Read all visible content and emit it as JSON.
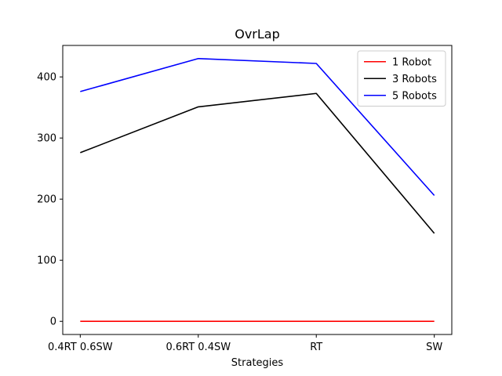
{
  "chart_data": {
    "type": "line",
    "title": "OvrLap",
    "xlabel": "Strategies",
    "ylabel": "",
    "categories": [
      "0.4RT 0.6SW",
      "0.6RT 0.4SW",
      "RT",
      "SW"
    ],
    "ylim": [
      -21.5,
      451.5
    ],
    "yticks": [
      0,
      100,
      200,
      300,
      400
    ],
    "grid": false,
    "legend_position": "upper right",
    "series": [
      {
        "name": "1 Robot",
        "color": "#ff0000",
        "values": [
          0,
          0,
          0,
          0
        ]
      },
      {
        "name": "3 Robots",
        "color": "#000000",
        "values": [
          276,
          351,
          373,
          144
        ]
      },
      {
        "name": "5 Robots",
        "color": "#0000ff",
        "values": [
          376,
          430,
          422,
          206
        ]
      }
    ]
  }
}
